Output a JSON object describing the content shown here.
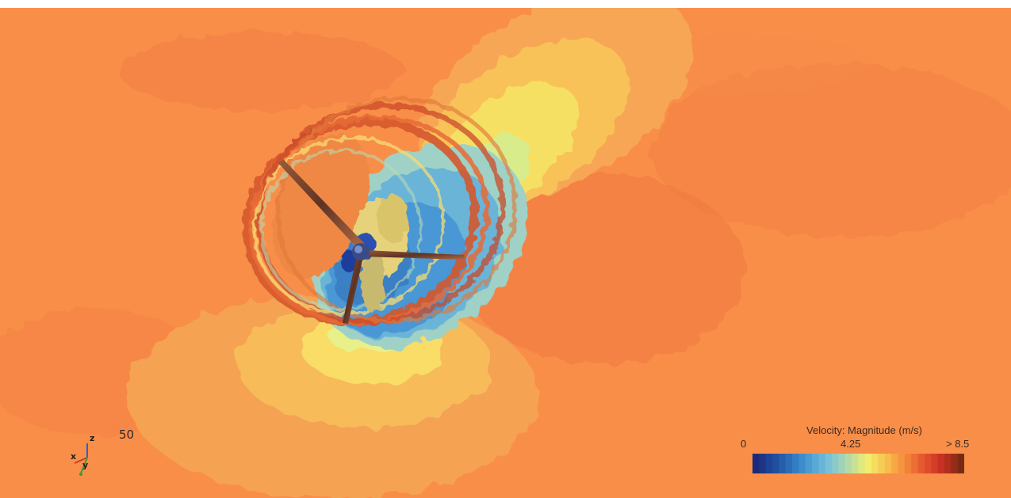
{
  "viewport": {
    "frame_label": "50",
    "axes": {
      "x_label": "x",
      "y_label": "y",
      "z_label": "z"
    }
  },
  "legend": {
    "title": "Velocity: Magnitude (m/s)",
    "min_label": "0",
    "mid_label": "4.25",
    "max_label": "> 8.5",
    "colormap": [
      "#1b2a7a",
      "#1f4c9e",
      "#2f77c0",
      "#4fa3d6",
      "#7cc4d8",
      "#b7dba6",
      "#f3ef6c",
      "#f8c04f",
      "#f58a3c",
      "#e5532e",
      "#c42f22",
      "#7a2a12"
    ]
  },
  "colors": {
    "freestream": "#f98e48",
    "wake_low": "#4a97d4",
    "blade": "#6b3a28"
  }
}
